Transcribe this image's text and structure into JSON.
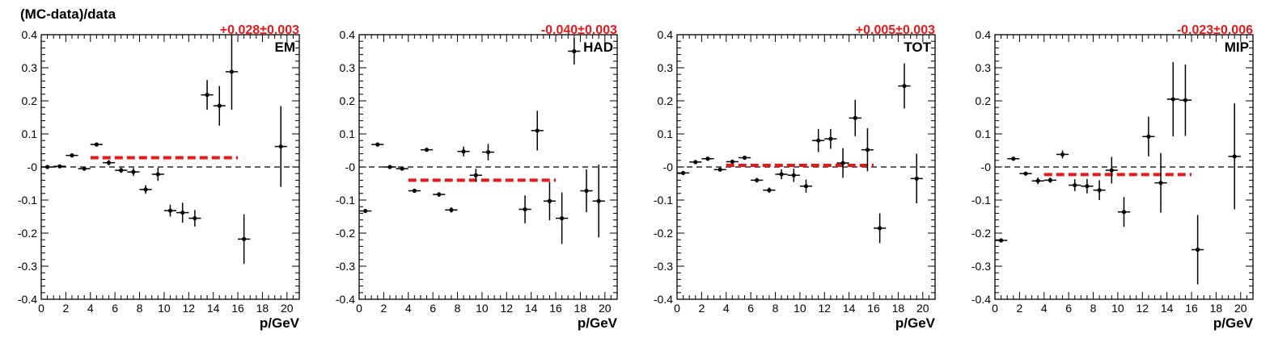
{
  "figure": {
    "ylabel": "(MC-data)/data",
    "xlabel": "p/GeV"
  },
  "chart_data": [
    {
      "type": "scatter",
      "panel_label": "EM",
      "fit_label": "+0.028±0.003",
      "fit_value": 0.028,
      "fit_range": [
        4,
        16
      ],
      "reference_line": 0,
      "xlim": [
        0,
        21
      ],
      "ylim": [
        -0.4,
        0.4
      ],
      "xticks": [
        "0",
        "2",
        "4",
        "6",
        "8",
        "10",
        "12",
        "14",
        "16",
        "18",
        "20"
      ],
      "yticks": [
        "-0.4",
        "-0.3",
        "-0.2",
        "-0.1",
        "-0",
        "0.1",
        "0.2",
        "0.3",
        "0.4"
      ],
      "xlabel": "p/GeV",
      "points": [
        {
          "x": 0.5,
          "y": 0.0,
          "err": 0.004
        },
        {
          "x": 1.5,
          "y": 0.002,
          "err": 0.004
        },
        {
          "x": 2.5,
          "y": 0.035,
          "err": 0.004
        },
        {
          "x": 3.5,
          "y": -0.005,
          "err": 0.005
        },
        {
          "x": 4.5,
          "y": 0.068,
          "err": 0.005
        },
        {
          "x": 5.5,
          "y": 0.013,
          "err": 0.008
        },
        {
          "x": 6.5,
          "y": -0.01,
          "err": 0.008
        },
        {
          "x": 7.5,
          "y": -0.015,
          "err": 0.012
        },
        {
          "x": 8.5,
          "y": -0.068,
          "err": 0.013
        },
        {
          "x": 9.5,
          "y": -0.022,
          "err": 0.02
        },
        {
          "x": 10.5,
          "y": -0.132,
          "err": 0.018
        },
        {
          "x": 11.5,
          "y": -0.138,
          "err": 0.03
        },
        {
          "x": 12.5,
          "y": -0.155,
          "err": 0.025
        },
        {
          "x": 13.5,
          "y": 0.218,
          "err": 0.045
        },
        {
          "x": 14.5,
          "y": 0.185,
          "err": 0.06
        },
        {
          "x": 15.5,
          "y": 0.288,
          "err": 0.115
        },
        {
          "x": 16.5,
          "y": -0.218,
          "err": 0.075
        },
        {
          "x": 19.5,
          "y": 0.062,
          "err": 0.122
        }
      ]
    },
    {
      "type": "scatter",
      "panel_label": "HAD",
      "fit_label": "-0.040±0.003",
      "fit_value": -0.04,
      "fit_range": [
        4,
        16
      ],
      "reference_line": 0,
      "xlim": [
        0,
        21
      ],
      "ylim": [
        -0.4,
        0.4
      ],
      "xticks": [
        "0",
        "2",
        "4",
        "6",
        "8",
        "10",
        "12",
        "14",
        "16",
        "18",
        "20"
      ],
      "yticks": [
        "-0.4",
        "-0.3",
        "-0.2",
        "-0.1",
        "-0",
        "0.1",
        "0.2",
        "0.3",
        "0.4"
      ],
      "xlabel": "p/GeV",
      "points": [
        {
          "x": 0.5,
          "y": -0.133,
          "err": 0.004
        },
        {
          "x": 1.5,
          "y": 0.068,
          "err": 0.004
        },
        {
          "x": 2.5,
          "y": 0.0,
          "err": 0.004
        },
        {
          "x": 3.5,
          "y": -0.005,
          "err": 0.005
        },
        {
          "x": 4.5,
          "y": -0.072,
          "err": 0.005
        },
        {
          "x": 5.5,
          "y": 0.052,
          "err": 0.006
        },
        {
          "x": 6.5,
          "y": -0.083,
          "err": 0.007
        },
        {
          "x": 7.5,
          "y": -0.13,
          "err": 0.008
        },
        {
          "x": 8.5,
          "y": 0.047,
          "err": 0.015
        },
        {
          "x": 9.5,
          "y": -0.025,
          "err": 0.02
        },
        {
          "x": 10.5,
          "y": 0.045,
          "err": 0.025
        },
        {
          "x": 13.5,
          "y": -0.128,
          "err": 0.042
        },
        {
          "x": 14.5,
          "y": 0.11,
          "err": 0.06
        },
        {
          "x": 15.5,
          "y": -0.103,
          "err": 0.058
        },
        {
          "x": 16.5,
          "y": -0.155,
          "err": 0.078
        },
        {
          "x": 17.5,
          "y": 0.35,
          "err": 0.04
        },
        {
          "x": 18.5,
          "y": -0.072,
          "err": 0.065
        },
        {
          "x": 19.5,
          "y": -0.103,
          "err": 0.11
        }
      ]
    },
    {
      "type": "scatter",
      "panel_label": "TOT",
      "fit_label": "+0.005±0.003",
      "fit_value": 0.005,
      "fit_range": [
        4,
        16
      ],
      "reference_line": 0,
      "xlim": [
        0,
        21
      ],
      "ylim": [
        -0.4,
        0.4
      ],
      "xticks": [
        "0",
        "2",
        "4",
        "6",
        "8",
        "10",
        "12",
        "14",
        "16",
        "18",
        "20"
      ],
      "yticks": [
        "-0.4",
        "-0.3",
        "-0.2",
        "-0.1",
        "-0",
        "0.1",
        "0.2",
        "0.3",
        "0.4"
      ],
      "xlabel": "p/GeV",
      "points": [
        {
          "x": 0.5,
          "y": -0.018,
          "err": 0.004
        },
        {
          "x": 1.5,
          "y": 0.015,
          "err": 0.004
        },
        {
          "x": 2.5,
          "y": 0.025,
          "err": 0.004
        },
        {
          "x": 3.5,
          "y": -0.008,
          "err": 0.005
        },
        {
          "x": 4.5,
          "y": 0.016,
          "err": 0.005
        },
        {
          "x": 5.5,
          "y": 0.028,
          "err": 0.006
        },
        {
          "x": 6.5,
          "y": -0.04,
          "err": 0.007
        },
        {
          "x": 7.5,
          "y": -0.07,
          "err": 0.008
        },
        {
          "x": 8.5,
          "y": -0.022,
          "err": 0.015
        },
        {
          "x": 9.5,
          "y": -0.025,
          "err": 0.02
        },
        {
          "x": 10.5,
          "y": -0.058,
          "err": 0.02
        },
        {
          "x": 11.5,
          "y": 0.08,
          "err": 0.035
        },
        {
          "x": 12.5,
          "y": 0.085,
          "err": 0.03
        },
        {
          "x": 13.5,
          "y": 0.012,
          "err": 0.045
        },
        {
          "x": 14.5,
          "y": 0.148,
          "err": 0.055
        },
        {
          "x": 15.5,
          "y": 0.052,
          "err": 0.065
        },
        {
          "x": 16.5,
          "y": -0.185,
          "err": 0.045
        },
        {
          "x": 18.5,
          "y": 0.245,
          "err": 0.068
        },
        {
          "x": 19.5,
          "y": -0.035,
          "err": 0.075
        }
      ]
    },
    {
      "type": "scatter",
      "panel_label": "MIP",
      "fit_label": "-0.023±0.006",
      "fit_value": -0.023,
      "fit_range": [
        4,
        16
      ],
      "reference_line": 0,
      "xlim": [
        0,
        21
      ],
      "ylim": [
        -0.4,
        0.4
      ],
      "xticks": [
        "0",
        "2",
        "4",
        "6",
        "8",
        "10",
        "12",
        "14",
        "16",
        "18",
        "20"
      ],
      "yticks": [
        "-0.4",
        "-0.3",
        "-0.2",
        "-0.1",
        "-0",
        "0.1",
        "0.2",
        "0.3",
        "0.4"
      ],
      "xlabel": "p/GeV",
      "points": [
        {
          "x": 0.5,
          "y": -0.222,
          "err": 0.004
        },
        {
          "x": 1.5,
          "y": 0.025,
          "err": 0.004
        },
        {
          "x": 2.5,
          "y": -0.02,
          "err": 0.005
        },
        {
          "x": 3.5,
          "y": -0.042,
          "err": 0.01
        },
        {
          "x": 4.5,
          "y": -0.04,
          "err": 0.008
        },
        {
          "x": 5.5,
          "y": 0.038,
          "err": 0.012
        },
        {
          "x": 6.5,
          "y": -0.055,
          "err": 0.018
        },
        {
          "x": 7.5,
          "y": -0.058,
          "err": 0.022
        },
        {
          "x": 8.5,
          "y": -0.07,
          "err": 0.03
        },
        {
          "x": 9.5,
          "y": -0.01,
          "err": 0.04
        },
        {
          "x": 10.5,
          "y": -0.136,
          "err": 0.045
        },
        {
          "x": 12.5,
          "y": 0.092,
          "err": 0.06
        },
        {
          "x": 13.5,
          "y": -0.048,
          "err": 0.09
        },
        {
          "x": 14.5,
          "y": 0.205,
          "err": 0.112
        },
        {
          "x": 15.5,
          "y": 0.202,
          "err": 0.108
        },
        {
          "x": 16.5,
          "y": -0.25,
          "err": 0.105
        },
        {
          "x": 19.5,
          "y": 0.032,
          "err": 0.16
        }
      ]
    }
  ]
}
